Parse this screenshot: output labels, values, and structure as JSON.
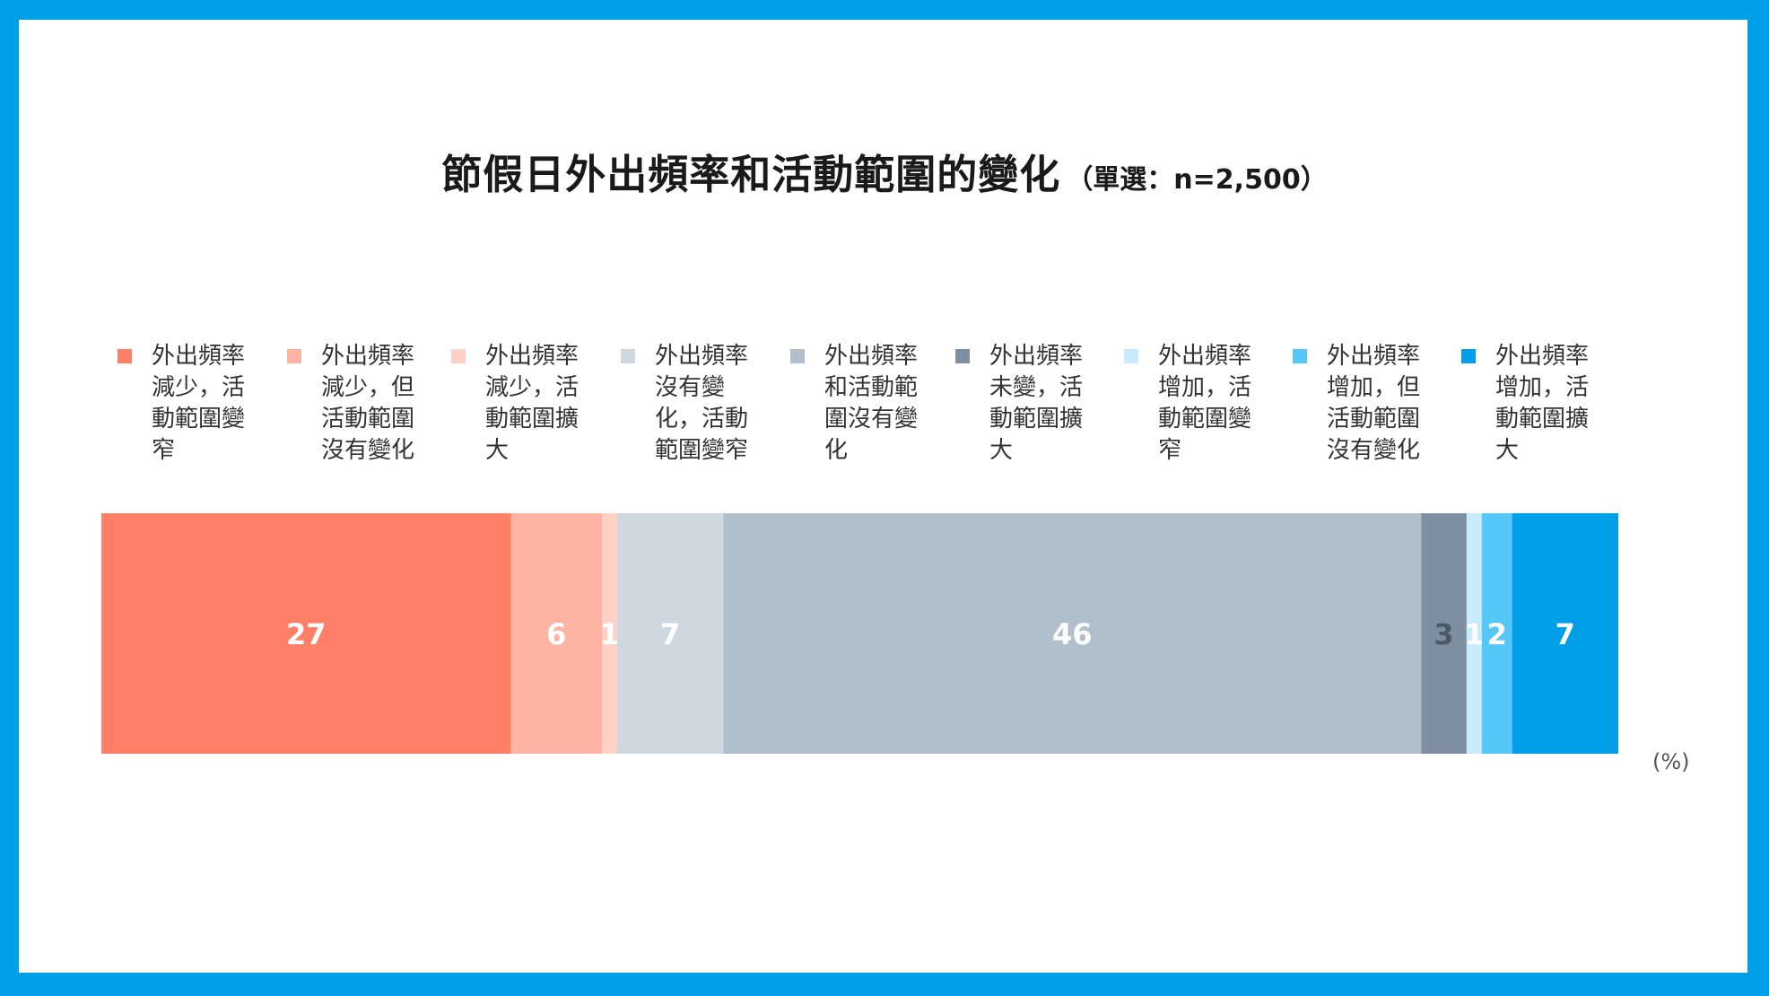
{
  "title": {
    "main": "節假日外出頻率和活動範圍的變化",
    "sub": "（單選：n=2,500）"
  },
  "unit": "(%)",
  "chart_data": {
    "type": "bar",
    "stacked": true,
    "orientation": "horizontal",
    "title": "節假日外出頻率和活動範圍的變化（單選：n=2,500）",
    "unit": "%",
    "legend_position": "top",
    "categories": [
      ""
    ],
    "series": [
      {
        "name": "外出頻率減少，活動範圍變窄",
        "values": [
          27
        ],
        "label": "27",
        "color": "#ff8066"
      },
      {
        "name": "外出頻率減少，但活動範圍沒有變化",
        "values": [
          6
        ],
        "label": "6",
        "color": "#ffb3a3"
      },
      {
        "name": "外出頻率減少，活動範圍擴大",
        "values": [
          1
        ],
        "label": "1",
        "color": "#ffd0c6"
      },
      {
        "name": "外出頻率沒有變化，活動範圍變窄",
        "values": [
          7
        ],
        "label": "7",
        "color": "#cfd8e0"
      },
      {
        "name": "外出頻率和活動範圍沒有變化",
        "values": [
          46
        ],
        "label": "46",
        "color": "#b0bfcb"
      },
      {
        "name": "外出頻率未變，活動範圍擴大",
        "values": [
          3
        ],
        "label": "3",
        "color": "#7d8fa1"
      },
      {
        "name": "外出頻率增加，活動範圍變窄",
        "values": [
          1
        ],
        "label": "1",
        "color": "#c8ecfb"
      },
      {
        "name": "外出頻率增加，但活動範圍沒有變化",
        "values": [
          2
        ],
        "label": "2",
        "color": "#55c8f8"
      },
      {
        "name": "外出頻率增加，活動範圍擴大",
        "values": [
          7
        ],
        "label": "7",
        "color": "#009fe8"
      }
    ]
  }
}
